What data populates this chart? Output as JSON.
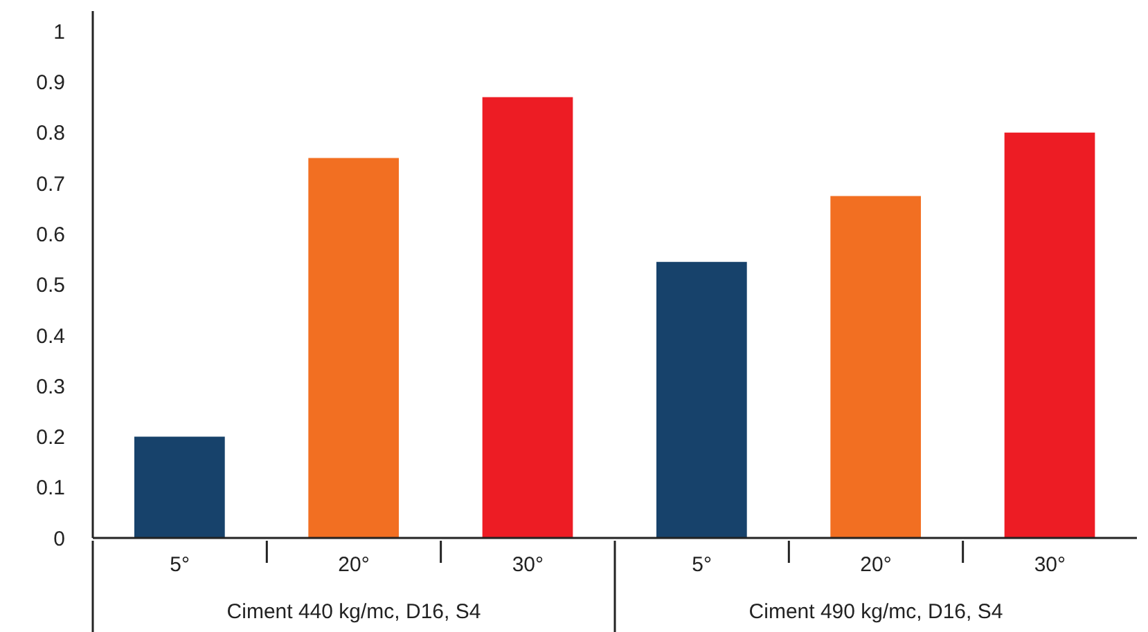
{
  "chart_data": {
    "type": "bar",
    "categories": [
      "5°",
      "20°",
      "30°",
      "5°",
      "20°",
      "30°"
    ],
    "values": [
      0.2,
      0.75,
      0.87,
      0.545,
      0.675,
      0.8
    ],
    "colors": [
      "#17426b",
      "#f26f22",
      "#ed1c24",
      "#17426b",
      "#f26f22",
      "#ed1c24"
    ],
    "ylim": [
      0,
      1.04
    ],
    "yticks": [
      0,
      0.1,
      0.2,
      0.3,
      0.4,
      0.5,
      0.6,
      0.7,
      0.8,
      0.9,
      1
    ],
    "grid": false,
    "annotations": [
      "Ciment 440 kg/mc, D16, S4",
      "Ciment 490 kg/mc, D16, S4"
    ]
  }
}
